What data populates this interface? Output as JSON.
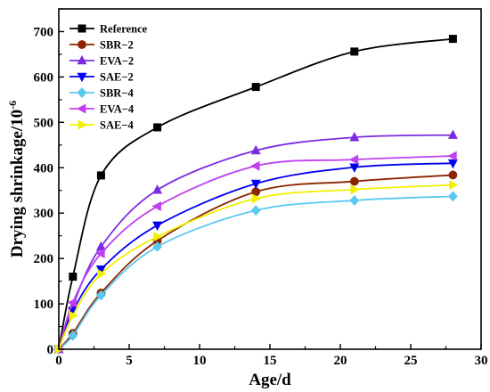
{
  "chart_data": {
    "type": "line",
    "title": "",
    "xlabel": "Age/d",
    "ylabel": "Drying shrinkage/10",
    "ylabel_exponent": "-6",
    "xlim": [
      0,
      30
    ],
    "ylim": [
      0,
      750
    ],
    "xticks": [
      0,
      5,
      10,
      15,
      20,
      25,
      30
    ],
    "yticks": [
      0,
      100,
      200,
      300,
      400,
      500,
      600,
      700
    ],
    "x": [
      0,
      1,
      3,
      7,
      14,
      21,
      28
    ],
    "legend_position": "top-left",
    "grid": false,
    "series": [
      {
        "name": "Reference",
        "color": "#000000",
        "marker": "square",
        "values": [
          0,
          160,
          383,
          489,
          578,
          656,
          684
        ]
      },
      {
        "name": "SBR−2",
        "color": "#8B2500",
        "marker": "circle",
        "values": [
          0,
          35,
          124,
          239,
          347,
          370,
          384
        ]
      },
      {
        "name": "EVA−2",
        "color": "#7B2BE2",
        "marker": "triangle-up",
        "values": [
          0,
          96,
          226,
          351,
          438,
          467,
          472
        ]
      },
      {
        "name": "SAE−2",
        "color": "#0000F0",
        "marker": "triangle-down",
        "values": [
          0,
          84,
          176,
          273,
          365,
          401,
          410
        ]
      },
      {
        "name": "SBR−4",
        "color": "#5BC8F0",
        "marker": "diamond",
        "values": [
          0,
          30,
          119,
          226,
          306,
          328,
          337
        ]
      },
      {
        "name": "EVA−4",
        "color": "#C040F0",
        "marker": "triangle-left",
        "values": [
          0,
          103,
          211,
          315,
          404,
          418,
          426
        ]
      },
      {
        "name": "SAE−4",
        "color": "#F0F000",
        "marker": "triangle-right",
        "values": [
          0,
          74,
          166,
          248,
          332,
          352,
          362
        ]
      }
    ]
  }
}
